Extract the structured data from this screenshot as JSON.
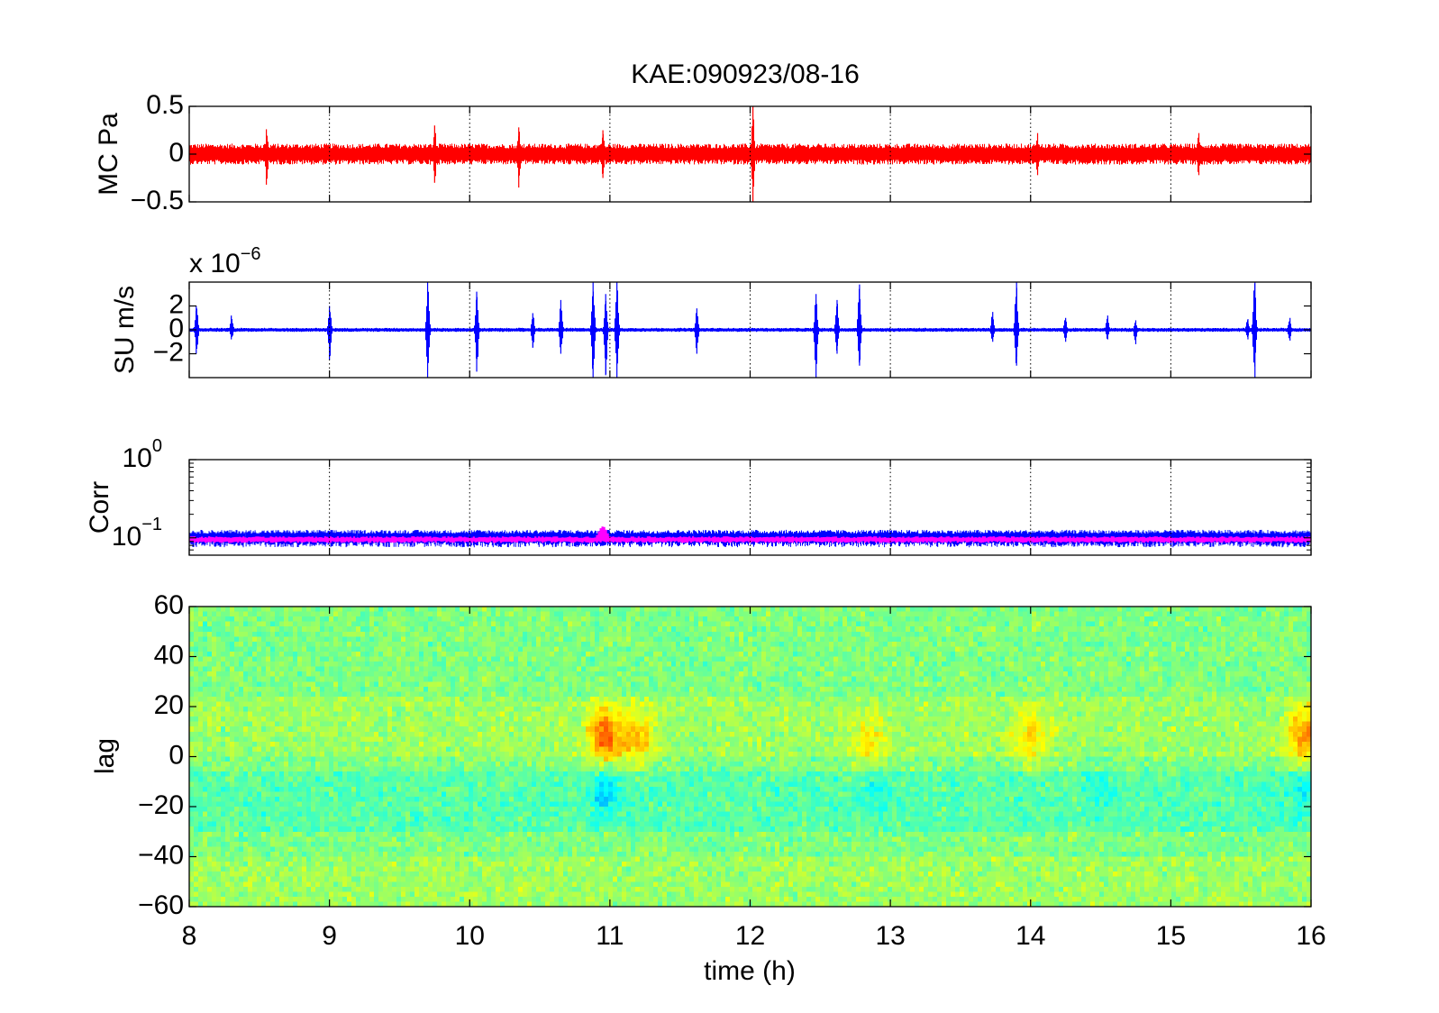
{
  "figure": {
    "title": "KAE:090923/08-16",
    "xlabel": "time (h)"
  },
  "chart_data": [
    {
      "id": "mc",
      "type": "line",
      "ylabel": "MC Pa",
      "xlim": [
        8,
        16
      ],
      "ylim": [
        -0.5,
        0.5
      ],
      "xticks": [
        8,
        9,
        10,
        11,
        12,
        13,
        14,
        15,
        16
      ],
      "yticks": [
        {
          "value": -0.5,
          "label": "−0.5"
        },
        {
          "value": 0,
          "label": "0"
        },
        {
          "value": 0.5,
          "label": "0.5"
        }
      ],
      "grid": "x-dotted",
      "series": [
        {
          "color": "#ff0000",
          "baseline_amplitude": 0.1,
          "spikes": [
            {
              "x": 8.55,
              "min": -0.32,
              "max": 0.26
            },
            {
              "x": 9.75,
              "min": -0.3,
              "max": 0.3
            },
            {
              "x": 10.35,
              "min": -0.35,
              "max": 0.28
            },
            {
              "x": 10.95,
              "min": -0.25,
              "max": 0.25
            },
            {
              "x": 12.02,
              "min": -0.5,
              "max": 0.5
            },
            {
              "x": 14.05,
              "min": -0.22,
              "max": 0.22
            },
            {
              "x": 15.2,
              "min": -0.22,
              "max": 0.22
            }
          ]
        }
      ]
    },
    {
      "id": "su",
      "type": "line",
      "ylabel": "SU m/s",
      "y_exponent_base": "x 10",
      "y_exponent": "−6",
      "xlim": [
        8,
        16
      ],
      "ylim": [
        -4,
        4
      ],
      "xticks": [
        8,
        9,
        10,
        11,
        12,
        13,
        14,
        15,
        16
      ],
      "yticks": [
        {
          "value": -2,
          "label": "−2"
        },
        {
          "value": 0,
          "label": "0"
        },
        {
          "value": 2,
          "label": "2"
        }
      ],
      "grid": "x-dotted",
      "series": [
        {
          "color": "#0000ff",
          "baseline_amplitude": 0.15,
          "spikes": [
            {
              "x": 8.05,
              "min": -2.0,
              "max": 2.0
            },
            {
              "x": 8.3,
              "min": -0.8,
              "max": 1.2
            },
            {
              "x": 9.0,
              "min": -2.5,
              "max": 2.0
            },
            {
              "x": 9.7,
              "min": -4.0,
              "max": 4.0
            },
            {
              "x": 10.05,
              "min": -3.5,
              "max": 3.2
            },
            {
              "x": 10.45,
              "min": -1.5,
              "max": 1.4
            },
            {
              "x": 10.65,
              "min": -2.0,
              "max": 2.5
            },
            {
              "x": 10.88,
              "min": -4.0,
              "max": 4.0
            },
            {
              "x": 10.97,
              "min": -3.8,
              "max": 3.0
            },
            {
              "x": 11.05,
              "min": -4.0,
              "max": 4.0
            },
            {
              "x": 11.62,
              "min": -2.0,
              "max": 1.8
            },
            {
              "x": 12.47,
              "min": -4.0,
              "max": 3.0
            },
            {
              "x": 12.62,
              "min": -2.0,
              "max": 2.5
            },
            {
              "x": 12.78,
              "min": -3.0,
              "max": 3.8
            },
            {
              "x": 13.73,
              "min": -1.0,
              "max": 1.5
            },
            {
              "x": 13.9,
              "min": -3.0,
              "max": 4.0
            },
            {
              "x": 14.25,
              "min": -1.0,
              "max": 1.0
            },
            {
              "x": 14.55,
              "min": -0.8,
              "max": 1.2
            },
            {
              "x": 14.75,
              "min": -1.2,
              "max": 0.8
            },
            {
              "x": 15.55,
              "min": -0.8,
              "max": 0.9
            },
            {
              "x": 15.6,
              "min": -4.0,
              "max": 4.0
            },
            {
              "x": 15.85,
              "min": -0.9,
              "max": 1.0
            }
          ]
        }
      ]
    },
    {
      "id": "corr",
      "type": "line",
      "ylabel": "Corr",
      "yscale": "log",
      "xlim": [
        8,
        16
      ],
      "ylim": [
        0.06,
        1
      ],
      "xticks": [
        8,
        9,
        10,
        11,
        12,
        13,
        14,
        15,
        16
      ],
      "yticks": [
        {
          "value": 0.1,
          "label": "10",
          "exp": "−1"
        },
        {
          "value": 1,
          "label": "10",
          "exp": "0"
        }
      ],
      "grid": "x-dotted",
      "series": [
        {
          "color": "#0000ff",
          "level": 0.1,
          "spread": 0.022
        },
        {
          "color": "#ff00ff",
          "level": 0.095,
          "spread": 0.008,
          "spikes": [
            {
              "x": 10.95,
              "max": 0.14
            }
          ]
        }
      ]
    },
    {
      "id": "lag",
      "type": "heatmap",
      "ylabel": "lag",
      "xlim": [
        8,
        16
      ],
      "ylim": [
        -60,
        60
      ],
      "xticks": [
        8,
        9,
        10,
        11,
        12,
        13,
        14,
        15,
        16
      ],
      "yticks": [
        {
          "value": -60,
          "label": "−60"
        },
        {
          "value": -40,
          "label": "−40"
        },
        {
          "value": -20,
          "label": "−20"
        },
        {
          "value": 0,
          "label": "0"
        },
        {
          "value": 20,
          "label": "20"
        },
        {
          "value": 40,
          "label": "40"
        },
        {
          "value": 60,
          "label": "60"
        }
      ],
      "colormap": "jet",
      "hotspots": [
        {
          "x": 10.97,
          "lag": 8,
          "strength": 0.9
        },
        {
          "x": 11.2,
          "lag": 8,
          "strength": 0.5
        },
        {
          "x": 12.85,
          "lag": 5,
          "strength": 0.4
        },
        {
          "x": 14.0,
          "lag": 8,
          "strength": 0.45
        },
        {
          "x": 15.95,
          "lag": 8,
          "strength": 0.7
        }
      ],
      "coldspots": [
        {
          "x": 10.97,
          "lag": -14,
          "strength": 0.6
        },
        {
          "x": 12.9,
          "lag": -12,
          "strength": 0.3
        },
        {
          "x": 14.5,
          "lag": -12,
          "strength": 0.25
        },
        {
          "x": 15.95,
          "lag": -12,
          "strength": 0.4
        }
      ]
    }
  ]
}
